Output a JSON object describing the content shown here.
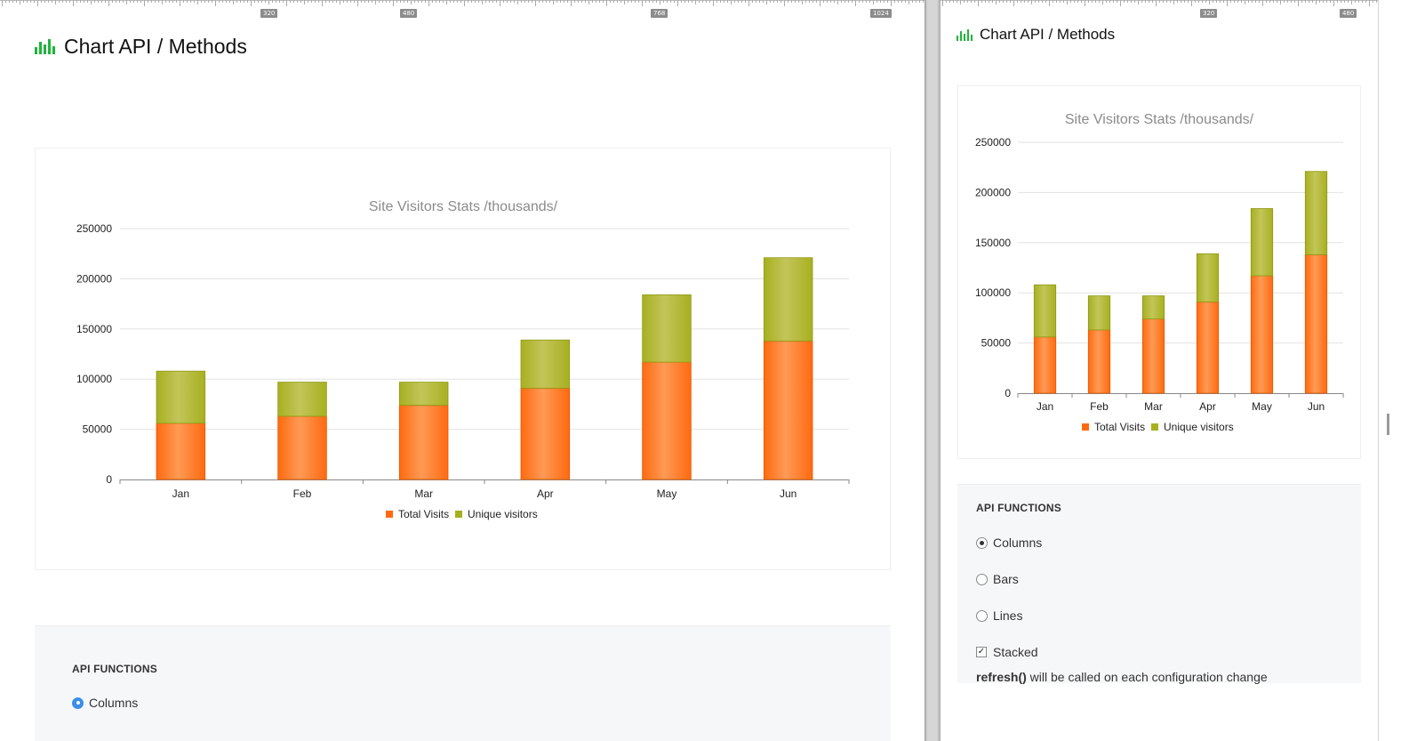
{
  "page": {
    "title": "Chart API / Methods"
  },
  "ruler_left": {
    "labels": [
      "320",
      "480",
      "768",
      "1024"
    ]
  },
  "ruler_right": {
    "labels": [
      "320",
      "480"
    ]
  },
  "chart_data": {
    "type": "bar",
    "stacked": true,
    "title": "Site Visitors Stats /thousands/",
    "categories": [
      "Jan",
      "Feb",
      "Mar",
      "Apr",
      "May",
      "Jun"
    ],
    "series": [
      {
        "name": "Total Visits",
        "color": "#ff6a10",
        "values": [
          56000,
          63000,
          74000,
          91000,
          117000,
          138000
        ]
      },
      {
        "name": "Unique visitors",
        "color": "#a7b020",
        "values": [
          52000,
          34000,
          23000,
          48000,
          67000,
          83000
        ]
      }
    ],
    "ylim": [
      0,
      250000
    ],
    "yticks": [
      "0",
      "50000",
      "100000",
      "150000",
      "200000",
      "250000"
    ],
    "grid": true,
    "legend": "bottom"
  },
  "api": {
    "heading": "API FUNCTIONS",
    "options": {
      "columns": "Columns",
      "bars": "Bars",
      "lines": "Lines",
      "stacked": "Stacked"
    },
    "selected": "Columns",
    "stacked_checked": true,
    "note_code": "refresh()",
    "note_text": " will be called on each configuration change"
  }
}
